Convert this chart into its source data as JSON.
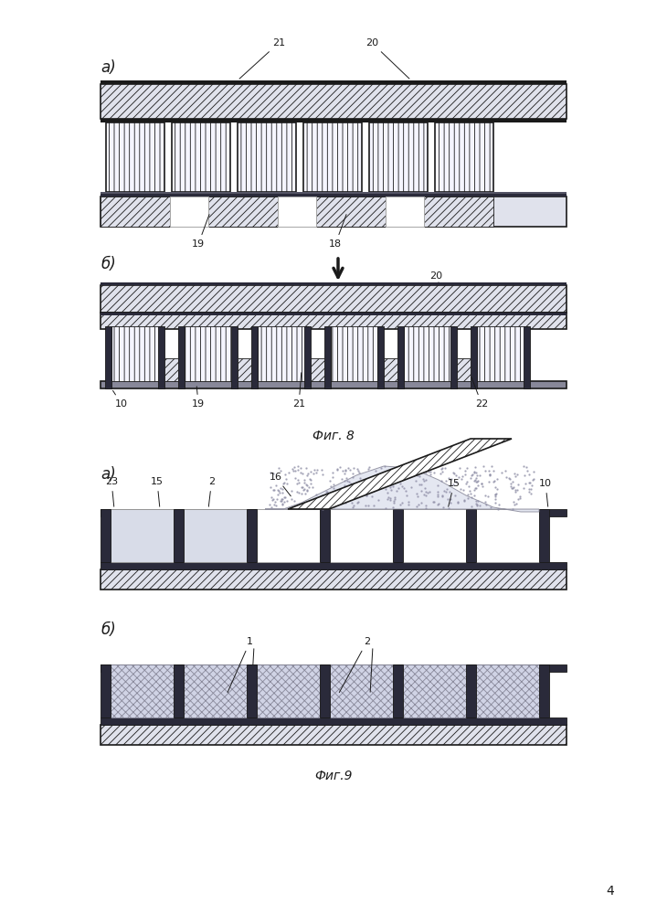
{
  "fig8_label": "Фиг. 8",
  "fig9_label": "Фиг.9",
  "page_num": "4",
  "bg_color": "#ffffff",
  "lc": "#1a1a1a",
  "hatch_fc": "#e0e2ec",
  "block_fc": "#f5f5ff",
  "dark_fc": "#2a2a3a"
}
